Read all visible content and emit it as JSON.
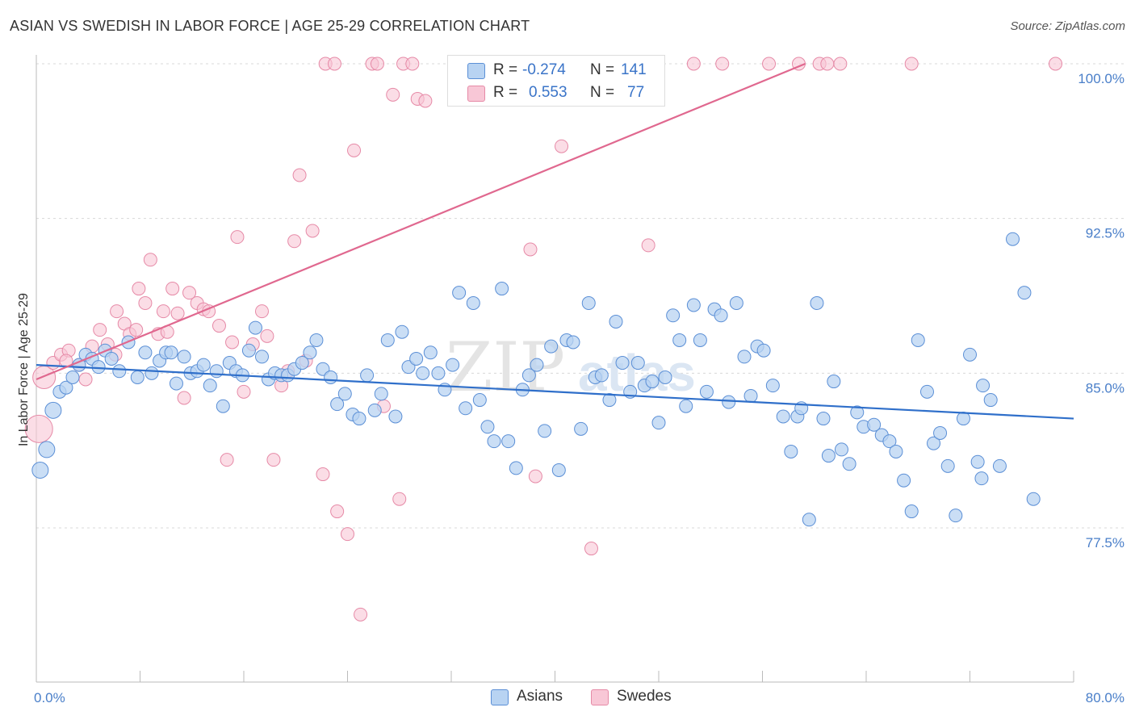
{
  "title": "ASIAN VS SWEDISH IN LABOR FORCE | AGE 25-29 CORRELATION CHART",
  "source": "Source: ZipAtlas.com",
  "watermark": {
    "zip": "ZIP",
    "atlas": "atlas"
  },
  "colors": {
    "asians_fill": "#b8d3f2",
    "asians_stroke": "#5b8fd6",
    "asians_line": "#2f6fca",
    "swedes_fill": "#f8c7d6",
    "swedes_stroke": "#e68aa7",
    "swedes_line": "#e0688f",
    "tick_text": "#4a7fc9",
    "grid": "#d8d8d8"
  },
  "legend": {
    "rows": [
      {
        "r_label": "R =",
        "r_value": "-0.274",
        "n_label": "N =",
        "n_value": "141"
      },
      {
        "r_label": "R =",
        "r_value": "0.553",
        "n_label": "N =",
        "n_value": "77"
      }
    ]
  },
  "bottom_legend": {
    "asians": "Asians",
    "swedes": "Swedes"
  },
  "chart_data": {
    "type": "scatter",
    "title": "ASIAN VS SWEDISH IN LABOR FORCE | AGE 25-29 CORRELATION CHART",
    "xlabel": "",
    "ylabel": "In Labor Force | Age 25-29",
    "xlim": [
      0,
      80
    ],
    "ylim": [
      72.3,
      100.7
    ],
    "x_tick_labels": [
      "0.0%",
      "80.0%"
    ],
    "y_ticks": [
      100.0,
      92.5,
      85.0,
      77.5
    ],
    "y_tick_labels": [
      "100.0%",
      "92.5%",
      "85.0%",
      "77.5%"
    ],
    "grid": "horizontal dashed",
    "legend_position": "top-center",
    "series": [
      {
        "name": "Asians",
        "r": -0.274,
        "n": 141,
        "trend": {
          "x": [
            0,
            80
          ],
          "y": [
            85.4,
            82.8
          ]
        },
        "points": [
          [
            0.3,
            80.3
          ],
          [
            0.8,
            81.3
          ],
          [
            1.3,
            83.2
          ],
          [
            1.8,
            84.1
          ],
          [
            2.3,
            84.3
          ],
          [
            2.8,
            84.8
          ],
          [
            3.3,
            85.4
          ],
          [
            3.8,
            85.9
          ],
          [
            4.3,
            85.7
          ],
          [
            4.8,
            85.3
          ],
          [
            5.3,
            86.1
          ],
          [
            5.8,
            85.7
          ],
          [
            6.4,
            85.1
          ],
          [
            7.1,
            86.5
          ],
          [
            7.8,
            84.8
          ],
          [
            8.4,
            86.0
          ],
          [
            8.9,
            85.0
          ],
          [
            9.5,
            85.6
          ],
          [
            10.0,
            86.0
          ],
          [
            10.4,
            86.0
          ],
          [
            10.8,
            84.5
          ],
          [
            11.4,
            85.8
          ],
          [
            11.9,
            85.0
          ],
          [
            12.4,
            85.1
          ],
          [
            12.9,
            85.4
          ],
          [
            13.4,
            84.4
          ],
          [
            13.9,
            85.1
          ],
          [
            14.4,
            83.4
          ],
          [
            14.9,
            85.5
          ],
          [
            15.4,
            85.1
          ],
          [
            15.9,
            84.9
          ],
          [
            16.4,
            86.1
          ],
          [
            16.9,
            87.2
          ],
          [
            17.4,
            85.8
          ],
          [
            17.9,
            84.7
          ],
          [
            18.4,
            85.0
          ],
          [
            18.9,
            84.9
          ],
          [
            19.4,
            84.9
          ],
          [
            19.9,
            85.2
          ],
          [
            20.5,
            85.5
          ],
          [
            21.1,
            86.0
          ],
          [
            21.6,
            86.6
          ],
          [
            22.1,
            85.2
          ],
          [
            22.7,
            84.8
          ],
          [
            23.2,
            83.5
          ],
          [
            23.8,
            84.0
          ],
          [
            24.4,
            83.0
          ],
          [
            24.9,
            82.8
          ],
          [
            25.5,
            84.9
          ],
          [
            26.1,
            83.2
          ],
          [
            26.6,
            84.0
          ],
          [
            27.1,
            86.6
          ],
          [
            27.7,
            82.9
          ],
          [
            28.2,
            87.0
          ],
          [
            28.7,
            85.3
          ],
          [
            29.3,
            85.7
          ],
          [
            29.8,
            85.0
          ],
          [
            30.4,
            86.0
          ],
          [
            31.0,
            85.0
          ],
          [
            31.5,
            84.2
          ],
          [
            32.1,
            85.4
          ],
          [
            32.6,
            88.9
          ],
          [
            33.1,
            83.3
          ],
          [
            33.7,
            88.4
          ],
          [
            34.2,
            83.7
          ],
          [
            34.8,
            82.4
          ],
          [
            35.3,
            81.7
          ],
          [
            35.9,
            89.1
          ],
          [
            36.4,
            81.7
          ],
          [
            37.0,
            80.4
          ],
          [
            37.5,
            84.2
          ],
          [
            38.0,
            84.9
          ],
          [
            38.6,
            85.4
          ],
          [
            39.2,
            82.2
          ],
          [
            39.7,
            86.3
          ],
          [
            40.3,
            80.3
          ],
          [
            40.9,
            86.6
          ],
          [
            41.4,
            86.5
          ],
          [
            42.0,
            82.3
          ],
          [
            42.6,
            88.4
          ],
          [
            43.1,
            84.8
          ],
          [
            43.6,
            84.9
          ],
          [
            44.2,
            83.7
          ],
          [
            44.7,
            87.5
          ],
          [
            45.2,
            85.5
          ],
          [
            45.8,
            84.1
          ],
          [
            46.4,
            85.5
          ],
          [
            46.9,
            84.4
          ],
          [
            47.5,
            84.6
          ],
          [
            48.0,
            82.6
          ],
          [
            48.5,
            84.8
          ],
          [
            49.1,
            87.8
          ],
          [
            49.6,
            86.6
          ],
          [
            50.1,
            83.4
          ],
          [
            50.7,
            88.3
          ],
          [
            51.2,
            86.6
          ],
          [
            51.7,
            84.1
          ],
          [
            52.3,
            88.1
          ],
          [
            52.8,
            87.8
          ],
          [
            53.4,
            83.6
          ],
          [
            54.0,
            88.4
          ],
          [
            54.6,
            85.8
          ],
          [
            55.1,
            83.9
          ],
          [
            55.6,
            86.3
          ],
          [
            56.1,
            86.1
          ],
          [
            56.8,
            84.4
          ],
          [
            57.6,
            82.9
          ],
          [
            58.2,
            81.2
          ],
          [
            58.7,
            82.9
          ],
          [
            59.0,
            83.3
          ],
          [
            59.6,
            77.9
          ],
          [
            60.2,
            88.4
          ],
          [
            60.7,
            82.8
          ],
          [
            61.1,
            81.0
          ],
          [
            61.5,
            84.6
          ],
          [
            62.1,
            81.3
          ],
          [
            62.7,
            80.6
          ],
          [
            63.3,
            83.1
          ],
          [
            63.8,
            82.4
          ],
          [
            64.6,
            82.5
          ],
          [
            65.2,
            82.0
          ],
          [
            65.8,
            81.7
          ],
          [
            66.3,
            81.2
          ],
          [
            66.9,
            79.8
          ],
          [
            67.5,
            78.3
          ],
          [
            68.0,
            86.6
          ],
          [
            68.7,
            84.1
          ],
          [
            69.2,
            81.6
          ],
          [
            69.7,
            82.1
          ],
          [
            70.3,
            80.5
          ],
          [
            70.9,
            78.1
          ],
          [
            71.5,
            82.8
          ],
          [
            72.0,
            85.9
          ],
          [
            72.6,
            80.7
          ],
          [
            73.0,
            84.4
          ],
          [
            73.6,
            83.7
          ],
          [
            74.3,
            80.5
          ],
          [
            75.3,
            91.5
          ],
          [
            76.2,
            88.9
          ],
          [
            76.9,
            78.9
          ],
          [
            72.9,
            79.9
          ]
        ]
      },
      {
        "name": "Swedes",
        "r": 0.553,
        "n": 77,
        "trend": {
          "x": [
            0,
            59.3
          ],
          "y": [
            84.7,
            100.0
          ]
        },
        "points": [
          [
            0.2,
            82.3
          ],
          [
            0.6,
            84.8
          ],
          [
            1.3,
            85.5
          ],
          [
            1.9,
            85.9
          ],
          [
            2.5,
            86.1
          ],
          [
            3.3,
            85.4
          ],
          [
            3.8,
            84.7
          ],
          [
            4.3,
            86.3
          ],
          [
            4.9,
            87.1
          ],
          [
            5.5,
            86.4
          ],
          [
            6.1,
            85.9
          ],
          [
            6.2,
            88.0
          ],
          [
            6.8,
            87.4
          ],
          [
            7.2,
            86.9
          ],
          [
            7.7,
            87.1
          ],
          [
            7.9,
            89.1
          ],
          [
            8.4,
            88.4
          ],
          [
            8.8,
            90.5
          ],
          [
            9.4,
            86.9
          ],
          [
            9.8,
            88.0
          ],
          [
            10.1,
            87.0
          ],
          [
            10.5,
            89.1
          ],
          [
            10.9,
            87.9
          ],
          [
            11.4,
            83.8
          ],
          [
            11.8,
            88.9
          ],
          [
            12.4,
            88.4
          ],
          [
            12.9,
            88.1
          ],
          [
            13.3,
            88.0
          ],
          [
            14.1,
            87.3
          ],
          [
            14.7,
            80.8
          ],
          [
            15.1,
            86.5
          ],
          [
            15.5,
            91.6
          ],
          [
            16.0,
            84.1
          ],
          [
            16.7,
            86.4
          ],
          [
            17.4,
            88.0
          ],
          [
            17.8,
            86.8
          ],
          [
            18.3,
            80.8
          ],
          [
            18.9,
            84.4
          ],
          [
            19.4,
            85.1
          ],
          [
            19.9,
            91.4
          ],
          [
            20.3,
            94.6
          ],
          [
            20.8,
            85.6
          ],
          [
            21.3,
            91.9
          ],
          [
            22.1,
            80.1
          ],
          [
            22.3,
            100.0
          ],
          [
            23.0,
            100.0
          ],
          [
            23.2,
            78.3
          ],
          [
            24.0,
            77.2
          ],
          [
            24.5,
            95.8
          ],
          [
            25.0,
            73.3
          ],
          [
            25.9,
            100.0
          ],
          [
            26.3,
            100.0
          ],
          [
            26.8,
            83.4
          ],
          [
            27.5,
            98.5
          ],
          [
            28.0,
            78.9
          ],
          [
            28.3,
            100.0
          ],
          [
            29.0,
            100.0
          ],
          [
            29.4,
            98.3
          ],
          [
            30.0,
            98.2
          ],
          [
            37.5,
            100.0
          ],
          [
            38.1,
            91.0
          ],
          [
            38.5,
            80.0
          ],
          [
            39.4,
            100.0
          ],
          [
            40.5,
            96.0
          ],
          [
            42.8,
            76.5
          ],
          [
            45.7,
            100.0
          ],
          [
            47.2,
            91.2
          ],
          [
            50.7,
            100.0
          ],
          [
            52.9,
            100.0
          ],
          [
            56.5,
            100.0
          ],
          [
            58.8,
            100.0
          ],
          [
            60.4,
            100.0
          ],
          [
            61.0,
            100.0
          ],
          [
            62.0,
            100.0
          ],
          [
            67.5,
            100.0
          ],
          [
            78.6,
            100.0
          ],
          [
            2.3,
            85.6
          ]
        ]
      }
    ]
  }
}
